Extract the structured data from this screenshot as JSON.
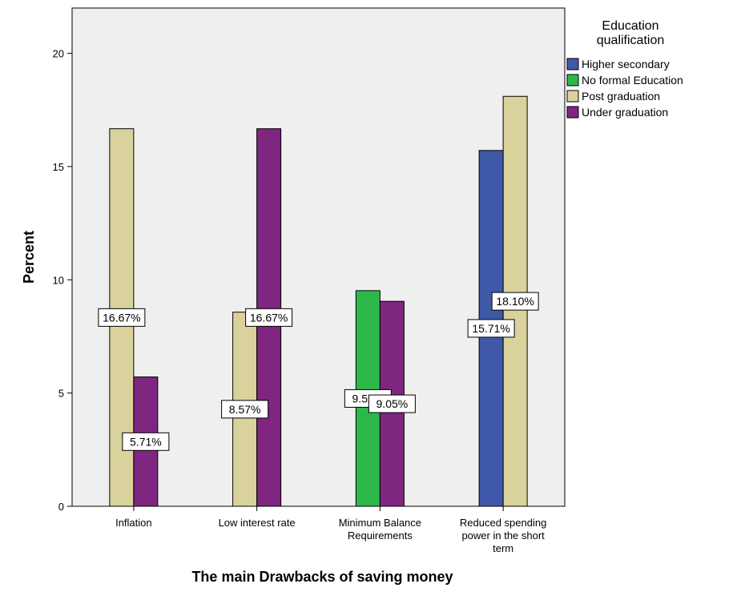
{
  "chart_data": {
    "type": "bar",
    "xlabel": "The main Drawbacks of saving money",
    "ylabel": "Percent",
    "ylim": [
      0,
      22
    ],
    "yticks": [
      0,
      5,
      10,
      15,
      20
    ],
    "grid": false,
    "legend": {
      "title": [
        "Education",
        "qualification"
      ],
      "placement": "right"
    },
    "categories": [
      [
        "Inflation"
      ],
      [
        "Low interest rate"
      ],
      [
        "Minimum Balance",
        "Requirements"
      ],
      [
        "Reduced spending",
        "power in the short",
        "term"
      ]
    ],
    "series": [
      {
        "name": "Higher secondary",
        "color": "#3f58a8",
        "values": [
          null,
          null,
          null,
          15.71
        ],
        "labels": [
          null,
          null,
          null,
          "15.71%"
        ]
      },
      {
        "name": "No formal Education",
        "color": "#2db84b",
        "values": [
          null,
          null,
          9.52,
          null
        ],
        "labels": [
          null,
          null,
          "9.52%",
          null
        ]
      },
      {
        "name": "Post graduation",
        "color": "#d9d29c",
        "values": [
          16.67,
          8.57,
          null,
          18.1
        ],
        "labels": [
          "16.67%",
          "8.57%",
          null,
          "18.10%"
        ]
      },
      {
        "name": "Under graduation",
        "color": "#7e2680",
        "values": [
          5.71,
          16.67,
          9.05,
          null
        ],
        "labels": [
          "5.71%",
          "16.67%",
          "9.05%",
          null
        ]
      }
    ],
    "plot_background": "#efefef"
  }
}
